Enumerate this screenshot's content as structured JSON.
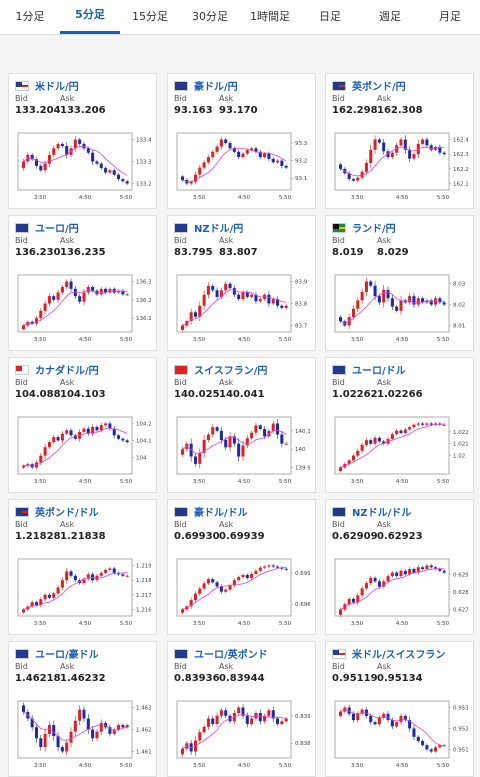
{
  "tabs": [
    {
      "label": "1分足",
      "active": false
    },
    {
      "label": "5分足",
      "active": true
    },
    {
      "label": "15分足",
      "active": false
    },
    {
      "label": "30分足",
      "active": false
    },
    {
      "label": "1時間足",
      "active": false
    },
    {
      "label": "日足",
      "active": false
    },
    {
      "label": "週足",
      "active": false
    },
    {
      "label": "月足",
      "active": false
    }
  ],
  "labels": {
    "bid": "Bid",
    "ask": "Ask"
  },
  "colors": {
    "link": "#1a5fb4",
    "up": "#e02020",
    "down": "#1a2aa8",
    "ma": "#e040e0"
  },
  "cards": [
    {
      "pair": "米ドル/円",
      "bid": "133.204",
      "ask": "133.206",
      "flag": "us",
      "chart": {
        "yticks": [
          "133.4",
          "133.3",
          "133.2"
        ],
        "xticks": [
          "3:50",
          "4:50",
          "5:50"
        ],
        "closes": [
          133.3,
          133.33,
          133.31,
          133.28,
          133.26,
          133.29,
          133.33,
          133.36,
          133.38,
          133.37,
          133.33,
          133.36,
          133.4,
          133.38,
          133.36,
          133.34,
          133.3,
          133.29,
          133.27,
          133.25,
          133.26,
          133.24,
          133.22,
          133.21,
          133.2
        ]
      }
    },
    {
      "pair": "豪ドル/円",
      "bid": "93.163",
      "ask": "93.170",
      "flag": "au",
      "chart": {
        "yticks": [
          "93.3",
          "93.2",
          "93.1"
        ],
        "xticks": [
          "3:50",
          "4:50",
          "5:50"
        ],
        "closes": [
          93.09,
          93.07,
          93.08,
          93.12,
          93.16,
          93.19,
          93.22,
          93.25,
          93.28,
          93.32,
          93.3,
          93.27,
          93.25,
          93.22,
          93.24,
          93.26,
          93.27,
          93.25,
          93.22,
          93.24,
          93.21,
          93.19,
          93.2,
          93.17,
          93.16
        ]
      }
    },
    {
      "pair": "英ポンド/円",
      "bid": "162.298",
      "ask": "162.308",
      "flag": "uk",
      "chart": {
        "yticks": [
          "162.4",
          "162.3",
          "162.2",
          "162.1"
        ],
        "xticks": [
          "3:50",
          "4:50",
          "5:50"
        ],
        "closes": [
          162.2,
          162.17,
          162.13,
          162.12,
          162.14,
          162.18,
          162.24,
          162.33,
          162.4,
          162.38,
          162.32,
          162.28,
          162.31,
          162.36,
          162.4,
          162.33,
          162.27,
          162.3,
          162.37,
          162.4,
          162.36,
          162.33,
          162.35,
          162.31,
          162.3
        ]
      }
    },
    {
      "pair": "ユーロ/円",
      "bid": "136.230",
      "ask": "136.235",
      "flag": "eu",
      "chart": {
        "yticks": [
          "136.3",
          "136.2",
          "136.1"
        ],
        "xticks": [
          "3:50",
          "4:50",
          "5:50"
        ],
        "closes": [
          136.06,
          136.08,
          136.07,
          136.1,
          136.14,
          136.18,
          136.22,
          136.2,
          136.24,
          136.27,
          136.3,
          136.26,
          136.22,
          136.19,
          136.24,
          136.27,
          136.25,
          136.23,
          136.26,
          136.24,
          136.26,
          136.24,
          136.25,
          136.23,
          136.23
        ]
      }
    },
    {
      "pair": "NZドル/円",
      "bid": "83.795",
      "ask": "83.807",
      "flag": "nz",
      "chart": {
        "yticks": [
          "83.9",
          "83.8",
          "83.7"
        ],
        "xticks": [
          "3:50",
          "4:50",
          "5:50"
        ],
        "closes": [
          83.7,
          83.72,
          83.76,
          83.74,
          83.79,
          83.84,
          83.88,
          83.86,
          83.83,
          83.86,
          83.89,
          83.87,
          83.84,
          83.82,
          83.85,
          83.83,
          83.84,
          83.81,
          83.82,
          83.84,
          83.8,
          83.82,
          83.79,
          83.78,
          83.79
        ]
      }
    },
    {
      "pair": "ランド/円",
      "bid": "8.019",
      "ask": "8.029",
      "flag": "za",
      "chart": {
        "yticks": [
          "8.03",
          "8.02",
          "8.01"
        ],
        "xticks": [
          "3:50",
          "4:50",
          "5:50"
        ],
        "closes": [
          8.012,
          8.01,
          8.014,
          8.018,
          8.022,
          8.026,
          8.031,
          8.029,
          8.024,
          8.021,
          8.027,
          8.023,
          8.019,
          8.017,
          8.022,
          8.021,
          8.024,
          8.02,
          8.023,
          8.021,
          8.022,
          8.02,
          8.023,
          8.021,
          8.02
        ]
      }
    },
    {
      "pair": "カナダドル/円",
      "bid": "104.088",
      "ask": "104.103",
      "flag": "ca",
      "chart": {
        "yticks": [
          "104.2",
          "104.1",
          "104"
        ],
        "xticks": [
          "3:50",
          "4:50",
          "5:50"
        ],
        "closes": [
          103.95,
          103.96,
          103.94,
          103.97,
          104.01,
          104.06,
          104.09,
          104.12,
          104.1,
          104.14,
          104.16,
          104.13,
          104.11,
          104.15,
          104.17,
          104.14,
          104.18,
          104.16,
          104.19,
          104.2,
          104.17,
          104.13,
          104.11,
          104.1,
          104.09
        ]
      }
    },
    {
      "pair": "スイスフラン/円",
      "bid": "140.025",
      "ask": "140.041",
      "flag": "ch",
      "chart": {
        "yticks": [
          "140.1",
          "140",
          "139.9"
        ],
        "xticks": [
          "3:50",
          "4:50",
          "5:50"
        ],
        "closes": [
          140.0,
          140.03,
          139.96,
          139.92,
          139.98,
          140.05,
          140.08,
          140.12,
          140.1,
          140.05,
          140.01,
          140.07,
          140.03,
          139.96,
          140.02,
          140.06,
          140.09,
          140.13,
          140.11,
          140.07,
          140.1,
          140.14,
          140.08,
          140.03,
          140.03
        ]
      }
    },
    {
      "pair": "ユーロ/ドル",
      "bid": "1.02262",
      "ask": "1.02266",
      "flag": "eu",
      "chart": {
        "yticks": [
          "1.022",
          "1.021",
          "1.02"
        ],
        "xticks": [
          "3:50",
          "4:50",
          "5:50"
        ],
        "closes": [
          1.019,
          1.0193,
          1.0196,
          1.02,
          1.0204,
          1.0209,
          1.0213,
          1.021,
          1.0215,
          1.0212,
          1.021,
          1.0214,
          1.0218,
          1.0221,
          1.0219,
          1.0222,
          1.0224,
          1.0226,
          1.0227,
          1.0226,
          1.0227,
          1.0226,
          1.0227,
          1.0226,
          1.0226
        ]
      }
    },
    {
      "pair": "英ポンド/ドル",
      "bid": "1.21828",
      "ask": "1.21838",
      "flag": "uk",
      "chart": {
        "yticks": [
          "1.219",
          "1.218",
          "1.217",
          "1.216"
        ],
        "xticks": [
          "3:50",
          "4:50",
          "5:50"
        ],
        "closes": [
          1.216,
          1.2162,
          1.2165,
          1.2163,
          1.2167,
          1.217,
          1.2168,
          1.2171,
          1.2175,
          1.218,
          1.2186,
          1.2183,
          1.218,
          1.2178,
          1.2181,
          1.2184,
          1.218,
          1.2183,
          1.2185,
          1.2187,
          1.2188,
          1.2185,
          1.2184,
          1.2183,
          1.2183
        ]
      }
    },
    {
      "pair": "豪ドル/ドル",
      "bid": "0.69930",
      "ask": "0.69939",
      "flag": "au",
      "chart": {
        "yticks": [
          "0.699",
          "0.696"
        ],
        "xticks": [
          "3:50",
          "4:50",
          "5:50"
        ],
        "closes": [
          0.6955,
          0.6958,
          0.6964,
          0.697,
          0.6975,
          0.698,
          0.6984,
          0.6981,
          0.6977,
          0.6972,
          0.6974,
          0.6978,
          0.6983,
          0.6986,
          0.6988,
          0.6985,
          0.6989,
          0.6992,
          0.6995,
          0.6996,
          0.6997,
          0.6996,
          0.6995,
          0.6994,
          0.6993
        ]
      }
    },
    {
      "pair": "NZドル/ドル",
      "bid": "0.62909",
      "ask": "0.62923",
      "flag": "nz",
      "chart": {
        "yticks": [
          "0.629",
          "0.628",
          "0.627"
        ],
        "xticks": [
          "3:50",
          "4:50",
          "5:50"
        ],
        "closes": [
          0.627,
          0.6273,
          0.6276,
          0.6274,
          0.6278,
          0.6282,
          0.6285,
          0.6288,
          0.6286,
          0.6283,
          0.6286,
          0.6289,
          0.6291,
          0.6289,
          0.6292,
          0.629,
          0.6293,
          0.6291,
          0.6294,
          0.6293,
          0.6295,
          0.6294,
          0.6293,
          0.6292,
          0.6291
        ]
      }
    },
    {
      "pair": "ユーロ/豪ドル",
      "bid": "1.46218",
      "ask": "1.46232",
      "flag": "eu",
      "chart": {
        "yticks": [
          "1.463",
          "1.462",
          "1.461"
        ],
        "xticks": [
          "3:50",
          "4:50",
          "5:50"
        ],
        "closes": [
          1.4628,
          1.4625,
          1.4621,
          1.4616,
          1.4612,
          1.4618,
          1.4622,
          1.4617,
          1.4612,
          1.461,
          1.4614,
          1.4619,
          1.4624,
          1.4629,
          1.4625,
          1.462,
          1.4616,
          1.4619,
          1.4623,
          1.4621,
          1.4618,
          1.462,
          1.4622,
          1.4621,
          1.4622
        ]
      }
    },
    {
      "pair": "ユーロ/英ポンド",
      "bid": "0.83936",
      "ask": "0.83944",
      "flag": "eu",
      "chart": {
        "yticks": [
          "0.8395",
          "0.8385"
        ],
        "xticks": [
          "3:50",
          "4:50",
          "5:50"
        ],
        "closes": [
          0.8383,
          0.8385,
          0.8382,
          0.8386,
          0.8389,
          0.8391,
          0.8394,
          0.8392,
          0.8395,
          0.8397,
          0.8395,
          0.8393,
          0.8396,
          0.8398,
          0.8395,
          0.8392,
          0.8394,
          0.8396,
          0.8393,
          0.8395,
          0.8397,
          0.8394,
          0.8392,
          0.8393,
          0.8394
        ]
      }
    },
    {
      "pair": "米ドル/スイスフラン",
      "bid": "0.95119",
      "ask": "0.95134",
      "flag": "us",
      "chart": {
        "yticks": [
          "0.953",
          "0.952",
          "0.951"
        ],
        "xticks": [
          "3:50",
          "4:50",
          "5:50"
        ],
        "closes": [
          0.9528,
          0.953,
          0.9527,
          0.9524,
          0.9527,
          0.9529,
          0.9526,
          0.9523,
          0.9522,
          0.9525,
          0.9527,
          0.9524,
          0.9521,
          0.9523,
          0.9526,
          0.9524,
          0.952,
          0.9516,
          0.9514,
          0.9512,
          0.951,
          0.9509,
          0.9511,
          0.9512,
          0.9512
        ]
      }
    }
  ]
}
